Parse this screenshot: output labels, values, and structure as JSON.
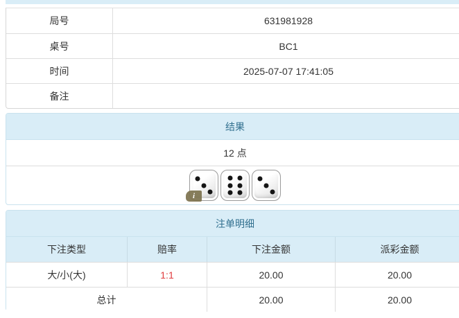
{
  "info_table": {
    "rows": [
      {
        "label": "局号",
        "value": "631981928"
      },
      {
        "label": "桌号",
        "value": "BC1"
      },
      {
        "label": "时间",
        "value": "2025-07-07 17:41:05"
      },
      {
        "label": "备注",
        "value": ""
      }
    ]
  },
  "result_panel": {
    "title": "结果",
    "points": "12 点",
    "dice": [
      3,
      6,
      3
    ],
    "info_badge": "i"
  },
  "bets_panel": {
    "title": "注单明细",
    "columns": [
      "下注类型",
      "赔率",
      "下注金额",
      "派彩金额"
    ],
    "rows": [
      {
        "type": "大/小(大)",
        "odds": "1:1",
        "bet": "20.00",
        "payout": "20.00"
      }
    ],
    "total_label": "总计",
    "total_bet": "20.00",
    "total_payout": "20.00"
  },
  "colors": {
    "heading_bg": "#d9edf7",
    "heading_text": "#31708f",
    "panel_border": "#c9e2ee",
    "inner_border": "#dddddd",
    "text_color": "#333333",
    "odds_red": "#e03a3c",
    "badge_olive": "#7d734f"
  }
}
